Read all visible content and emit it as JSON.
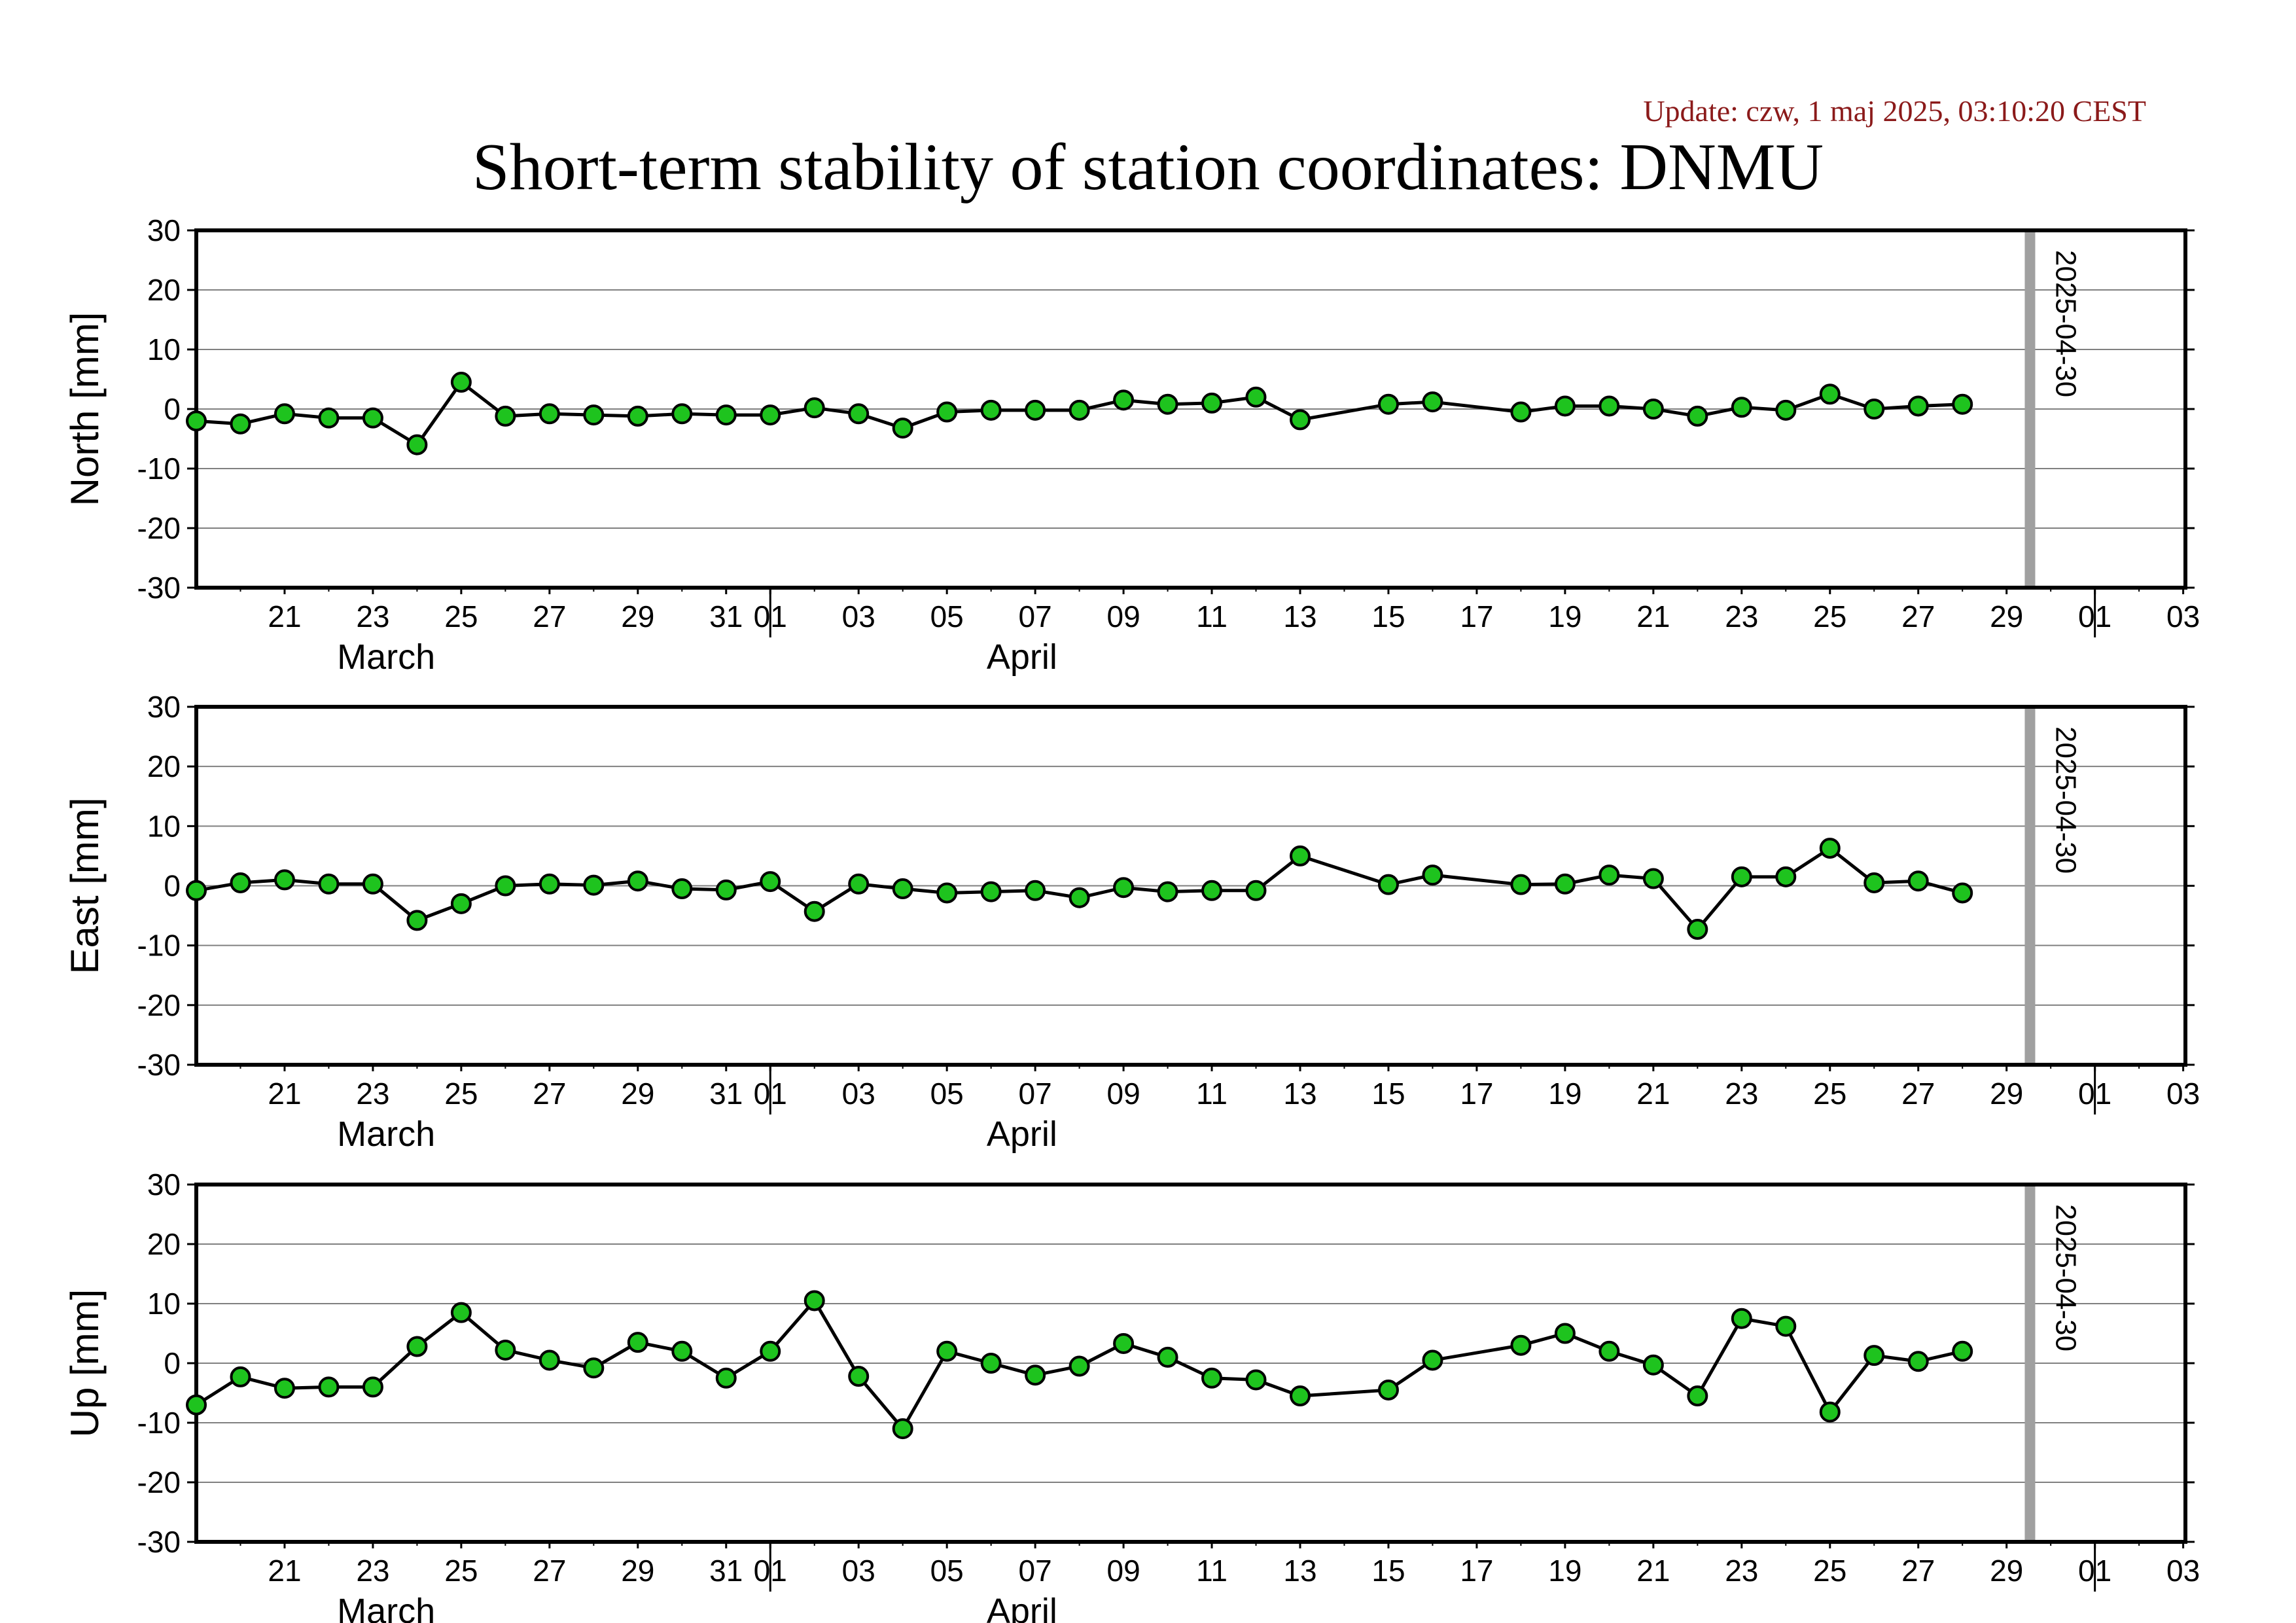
{
  "update_text": "Update: czw, 1 maj 2025, 03:10:20 CEST",
  "title": "Short-term stability of station coordinates: DNMU",
  "x_tick_labels": [
    "21",
    "23",
    "25",
    "27",
    "29",
    "31",
    "01",
    "03",
    "05",
    "07",
    "09",
    "11",
    "13",
    "15",
    "17",
    "19",
    "21",
    "23",
    "25",
    "27",
    "29",
    "01",
    "03"
  ],
  "month_labels": [
    "March",
    "April"
  ],
  "marker_label": "2025-04-30",
  "colors": {
    "point_fill": "#1ec31e",
    "marker_line": "#a0a0a0",
    "title_update": "#8b1a1a"
  },
  "chart_data": [
    {
      "type": "line",
      "ylabel": "North [mm]",
      "ylim": [
        -30,
        30
      ],
      "yticks": [
        30,
        20,
        10,
        0,
        -10,
        -20,
        -30
      ],
      "grid": true,
      "x": [
        "2025-03-19",
        "2025-03-20",
        "2025-03-21",
        "2025-03-22",
        "2025-03-23",
        "2025-03-24",
        "2025-03-25",
        "2025-03-26",
        "2025-03-27",
        "2025-03-28",
        "2025-03-29",
        "2025-03-30",
        "2025-03-31",
        "2025-04-01",
        "2025-04-02",
        "2025-04-03",
        "2025-04-04",
        "2025-04-05",
        "2025-04-06",
        "2025-04-07",
        "2025-04-08",
        "2025-04-09",
        "2025-04-10",
        "2025-04-11",
        "2025-04-12",
        "2025-04-13",
        "2025-04-15",
        "2025-04-16",
        "2025-04-18",
        "2025-04-19",
        "2025-04-20",
        "2025-04-21",
        "2025-04-22",
        "2025-04-23",
        "2025-04-24",
        "2025-04-25",
        "2025-04-26",
        "2025-04-27",
        "2025-04-28"
      ],
      "values": [
        -2,
        -2.5,
        -0.8,
        -1.5,
        -1.5,
        -6,
        4.5,
        -1.2,
        -0.8,
        -1,
        -1.2,
        -0.8,
        -1,
        -1,
        0.2,
        -0.8,
        -3.2,
        -0.5,
        -0.2,
        -0.2,
        -0.2,
        1.5,
        0.8,
        1,
        2,
        -1.8,
        0.8,
        1.2,
        -0.5,
        0.5,
        0.5,
        0,
        -1.2,
        0.3,
        -0.2,
        2.5,
        0,
        0.5,
        0.8
      ]
    },
    {
      "type": "line",
      "ylabel": "East [mm]",
      "ylim": [
        -30,
        30
      ],
      "yticks": [
        30,
        20,
        10,
        0,
        -10,
        -20,
        -30
      ],
      "grid": true,
      "x": [
        "2025-03-19",
        "2025-03-20",
        "2025-03-21",
        "2025-03-22",
        "2025-03-23",
        "2025-03-24",
        "2025-03-25",
        "2025-03-26",
        "2025-03-27",
        "2025-03-28",
        "2025-03-29",
        "2025-03-30",
        "2025-03-31",
        "2025-04-01",
        "2025-04-02",
        "2025-04-03",
        "2025-04-04",
        "2025-04-05",
        "2025-04-06",
        "2025-04-07",
        "2025-04-08",
        "2025-04-09",
        "2025-04-10",
        "2025-04-11",
        "2025-04-12",
        "2025-04-13",
        "2025-04-15",
        "2025-04-16",
        "2025-04-18",
        "2025-04-19",
        "2025-04-20",
        "2025-04-21",
        "2025-04-22",
        "2025-04-23",
        "2025-04-24",
        "2025-04-25",
        "2025-04-26",
        "2025-04-27",
        "2025-04-28"
      ],
      "values": [
        -0.8,
        0.5,
        1,
        0.3,
        0.3,
        -5.8,
        -3,
        0,
        0.3,
        0.1,
        0.8,
        -0.5,
        -0.7,
        0.7,
        -4.3,
        0.3,
        -0.5,
        -1.2,
        -1,
        -0.8,
        -2,
        -0.3,
        -1,
        -0.8,
        -0.8,
        5,
        0.2,
        1.8,
        0.2,
        0.3,
        1.8,
        1.2,
        -7.3,
        1.5,
        1.5,
        6.3,
        0.5,
        0.8,
        -1.2
      ]
    },
    {
      "type": "line",
      "ylabel": "Up [mm]",
      "ylim": [
        -30,
        30
      ],
      "yticks": [
        30,
        20,
        10,
        0,
        -10,
        -20,
        -30
      ],
      "grid": true,
      "x": [
        "2025-03-19",
        "2025-03-20",
        "2025-03-21",
        "2025-03-22",
        "2025-03-23",
        "2025-03-24",
        "2025-03-25",
        "2025-03-26",
        "2025-03-27",
        "2025-03-28",
        "2025-03-29",
        "2025-03-30",
        "2025-03-31",
        "2025-04-01",
        "2025-04-02",
        "2025-04-03",
        "2025-04-04",
        "2025-04-05",
        "2025-04-06",
        "2025-04-07",
        "2025-04-08",
        "2025-04-09",
        "2025-04-10",
        "2025-04-11",
        "2025-04-12",
        "2025-04-13",
        "2025-04-15",
        "2025-04-16",
        "2025-04-18",
        "2025-04-19",
        "2025-04-20",
        "2025-04-21",
        "2025-04-22",
        "2025-04-23",
        "2025-04-24",
        "2025-04-25",
        "2025-04-26",
        "2025-04-27",
        "2025-04-28"
      ],
      "values": [
        -7,
        -2.3,
        -4.2,
        -4,
        -4,
        2.8,
        8.5,
        2.2,
        0.5,
        -0.8,
        3.5,
        2,
        -2.5,
        2,
        10.5,
        -2.2,
        -11,
        2,
        0,
        -2,
        -0.5,
        3.3,
        1,
        -2.5,
        -2.8,
        -5.5,
        -4.5,
        0.5,
        3,
        5,
        2,
        -0.3,
        -5.5,
        7.5,
        6.2,
        -8.2,
        1.3,
        0.3,
        2
      ]
    }
  ]
}
